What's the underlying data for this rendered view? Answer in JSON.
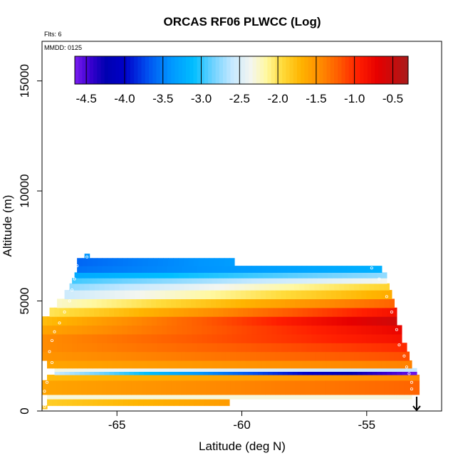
{
  "chart_data": {
    "type": "heatmap",
    "title": "ORCAS RF06 PLWCC (Log)",
    "note_flights": "Flts: 6",
    "note_date": "MMDD: 0125",
    "xlabel": "Latitude (deg N)",
    "ylabel": "Altitude (m)",
    "xlim": [
      -68.0,
      -52.0
    ],
    "ylim": [
      0,
      16800
    ],
    "xticks": [
      -65,
      -60,
      -55
    ],
    "yticks": [
      0,
      5000,
      10000,
      15000
    ],
    "xtick_labels": [
      "-65",
      "-60",
      "-55"
    ],
    "ytick_labels": [
      "0",
      "5000",
      "10000",
      "15000"
    ],
    "colorbar": {
      "range": [
        -4.65,
        -0.3
      ],
      "ticks": [
        -4.5,
        -4.0,
        -3.5,
        -3.0,
        -2.5,
        -2.0,
        -1.5,
        -1.0,
        -0.5
      ],
      "tick_labels": [
        "-4.5",
        "-4.0",
        "-3.5",
        "-3.0",
        "-2.5",
        "-2.0",
        "-1.5",
        "-1.0",
        "-0.5"
      ],
      "stops": [
        {
          "v": -4.65,
          "color": "#7a1cf0"
        },
        {
          "v": -4.45,
          "color": "#3a00d0"
        },
        {
          "v": -4.25,
          "color": "#0000b0"
        },
        {
          "v": -4.0,
          "color": "#0000c8"
        },
        {
          "v": -3.7,
          "color": "#0050f0"
        },
        {
          "v": -3.4,
          "color": "#0096ff"
        },
        {
          "v": -3.1,
          "color": "#00beff"
        },
        {
          "v": -2.85,
          "color": "#6ed2ff"
        },
        {
          "v": -2.6,
          "color": "#c4e8ff"
        },
        {
          "v": -2.35,
          "color": "#f4f6f0"
        },
        {
          "v": -2.15,
          "color": "#fff8a0"
        },
        {
          "v": -1.95,
          "color": "#ffdc3c"
        },
        {
          "v": -1.7,
          "color": "#ffb400"
        },
        {
          "v": -1.45,
          "color": "#ff8c00"
        },
        {
          "v": -1.2,
          "color": "#ff5a00"
        },
        {
          "v": -0.95,
          "color": "#ff1e00"
        },
        {
          "v": -0.7,
          "color": "#e60000"
        },
        {
          "v": -0.5,
          "color": "#c80c0c"
        },
        {
          "v": -0.3,
          "color": "#a81c1c"
        }
      ]
    },
    "grid_cell": {
      "dx": 0.2,
      "dy": 300
    },
    "layers": [
      {
        "y0": 100,
        "y1": 250,
        "x0": -68.0,
        "x1": -67.8,
        "north": -67.8,
        "south": -67.8,
        "value": -1.8
      },
      {
        "y0": 250,
        "y1": 550,
        "x0": -67.8,
        "x1": -60.5,
        "north": -1.85,
        "south": -1.55
      },
      {
        "y0": 550,
        "y1": 750,
        "x0": -67.8,
        "x1": -53.2,
        "north": -2.3,
        "south": -2.3
      },
      {
        "y0": 750,
        "y1": 1400,
        "x0": -68.0,
        "x1": -52.9,
        "north": -1.6,
        "south": -1.25
      },
      {
        "y0": 1400,
        "y1": 1650,
        "x0": -67.8,
        "x1": -52.9,
        "north": -1.75,
        "south": -1.45
      },
      {
        "y0": 1650,
        "y1": 1800,
        "x0": -67.5,
        "x1": -53.0,
        "north": -2.6,
        "south": -4.6
      },
      {
        "y0": 1800,
        "y1": 1950,
        "x0": -67.5,
        "x1": -53.0,
        "north": -2.3,
        "south": -2.6
      },
      {
        "y0": 1950,
        "y1": 2300,
        "x0": -67.8,
        "x1": -53.2,
        "north": -1.6,
        "south": -1.4
      },
      {
        "y0": 2300,
        "y1": 2700,
        "x0": -68.0,
        "x1": -53.3,
        "north": -1.5,
        "south": -1.15
      },
      {
        "y0": 2700,
        "y1": 3100,
        "x0": -68.0,
        "x1": -53.4,
        "north": -1.45,
        "south": -1.0
      },
      {
        "y0": 3100,
        "y1": 3500,
        "x0": -68.0,
        "x1": -53.6,
        "north": -1.45,
        "south": -0.85
      },
      {
        "y0": 3500,
        "y1": 3900,
        "x0": -68.0,
        "x1": -53.6,
        "north": -1.6,
        "south": -0.75
      },
      {
        "y0": 3900,
        "y1": 4300,
        "x0": -68.0,
        "x1": -53.8,
        "north": -1.75,
        "south": -0.55
      },
      {
        "y0": 4300,
        "y1": 4700,
        "x0": -67.7,
        "x1": -53.8,
        "north": -2.0,
        "south": -0.85
      },
      {
        "y0": 4700,
        "y1": 5100,
        "x0": -67.4,
        "x1": -53.9,
        "north": -2.25,
        "south": -1.25
      },
      {
        "y0": 5100,
        "y1": 5500,
        "x0": -67.1,
        "x1": -54.0,
        "north": -2.55,
        "south": -1.65
      },
      {
        "y0": 5500,
        "y1": 5800,
        "x0": -66.9,
        "x1": -54.1,
        "north": -2.75,
        "south": -1.9
      },
      {
        "y0": 5800,
        "y1": 6050,
        "x0": -66.8,
        "x1": -54.2,
        "north": -2.95,
        "south": -2.35
      },
      {
        "y0": 6050,
        "y1": 6300,
        "x0": -66.7,
        "x1": -54.2,
        "north": -3.25,
        "south": -2.75
      },
      {
        "y0": 6300,
        "y1": 6600,
        "x0": -66.6,
        "x1": -54.4,
        "north": -3.55,
        "south": -3.2
      },
      {
        "y0": 6600,
        "y1": 6950,
        "x0": -66.6,
        "x1": -60.3,
        "north": -3.6,
        "south": -3.35
      },
      {
        "y0": 6950,
        "y1": 7150,
        "x0": -66.3,
        "x1": -66.1,
        "north": -3.4,
        "south": -3.4
      }
    ],
    "trajectory": [
      [
        -67.9,
        200
      ],
      [
        -67.9,
        600
      ],
      [
        -67.9,
        900
      ],
      [
        -67.8,
        1300
      ],
      [
        -67.7,
        1800
      ],
      [
        -67.6,
        2200
      ],
      [
        -67.7,
        2700
      ],
      [
        -67.6,
        3200
      ],
      [
        -67.5,
        3600
      ],
      [
        -67.3,
        4000
      ],
      [
        -67.1,
        4500
      ],
      [
        -66.9,
        5000
      ],
      [
        -66.8,
        5500
      ],
      [
        -66.7,
        6000
      ],
      [
        -66.6,
        6600
      ],
      [
        -66.2,
        7000
      ],
      [
        -54.8,
        6500
      ],
      [
        -54.5,
        6000
      ],
      [
        -54.2,
        5200
      ],
      [
        -54.0,
        4500
      ],
      [
        -53.8,
        3700
      ],
      [
        -53.7,
        3000
      ],
      [
        -53.5,
        2500
      ],
      [
        -53.4,
        2000
      ],
      [
        -53.3,
        1700
      ],
      [
        -53.2,
        1300
      ],
      [
        -53.2,
        1000
      ]
    ],
    "arrow": {
      "x": -53.0,
      "y_from": 650,
      "y_to": 0
    },
    "grid": false,
    "legend": "none"
  }
}
